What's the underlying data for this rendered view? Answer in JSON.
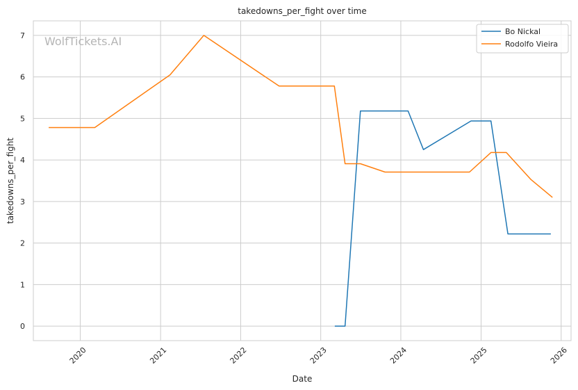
{
  "chart_data": {
    "type": "line",
    "title": "takedowns_per_fight over time",
    "xlabel": "Date",
    "ylabel": "takedowns_per_fight",
    "watermark": "WolfTickets.AI",
    "x_ticks": [
      "2020",
      "2021",
      "2022",
      "2023",
      "2024",
      "2025",
      "2026"
    ],
    "y_ticks": [
      "0",
      "1",
      "2",
      "3",
      "4",
      "5",
      "6",
      "7"
    ],
    "xlim": [
      "2019-06-01",
      "2026-02-15"
    ],
    "ylim": [
      -0.35,
      7.35
    ],
    "grid": true,
    "legend_position": "top-right",
    "series": [
      {
        "name": "Bo Nickal",
        "color": "#1f77b4",
        "points": [
          [
            "2023-03-06",
            0.0
          ],
          [
            "2023-04-22",
            0.0
          ],
          [
            "2023-07-01",
            5.18
          ],
          [
            "2024-02-03",
            5.18
          ],
          [
            "2024-04-13",
            4.25
          ],
          [
            "2024-11-16",
            4.94
          ],
          [
            "2025-02-15",
            4.94
          ],
          [
            "2025-05-03",
            2.22
          ],
          [
            "2025-11-15",
            2.22
          ]
        ]
      },
      {
        "name": "Rodolfo Vieira",
        "color": "#ff7f0e",
        "points": [
          [
            "2019-08-10",
            4.78
          ],
          [
            "2020-03-07",
            4.78
          ],
          [
            "2021-02-13",
            6.05
          ],
          [
            "2021-07-17",
            7.0
          ],
          [
            "2022-06-25",
            5.78
          ],
          [
            "2023-03-04",
            5.78
          ],
          [
            "2023-04-22",
            3.91
          ],
          [
            "2023-07-01",
            3.91
          ],
          [
            "2023-10-21",
            3.71
          ],
          [
            "2024-11-09",
            3.71
          ],
          [
            "2025-02-15",
            4.18
          ],
          [
            "2025-04-26",
            4.18
          ],
          [
            "2025-08-16",
            3.53
          ],
          [
            "2025-11-22",
            3.1
          ]
        ]
      }
    ]
  }
}
